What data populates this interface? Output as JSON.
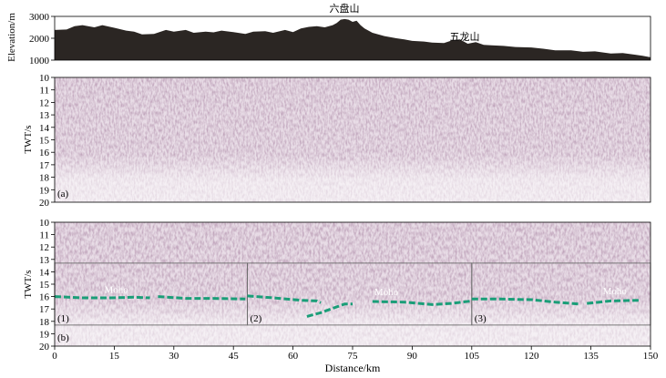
{
  "chart_data": [
    {
      "panel": "elevation",
      "type": "area",
      "ylabel": "Elevation/m",
      "yticks": [
        "3000",
        "2000",
        "1000"
      ],
      "ylim": [
        1000,
        3000
      ],
      "xlim": [
        0,
        150
      ],
      "fill_color": "#2b2623",
      "annotations": [
        {
          "label": "六盘山",
          "x": 73,
          "y": 3000
        },
        {
          "label": "五龙山",
          "x": 103,
          "y": 2150
        }
      ],
      "x": [
        0,
        3,
        5,
        7,
        10,
        12,
        15,
        18,
        20,
        22,
        25,
        28,
        30,
        33,
        35,
        38,
        40,
        42,
        45,
        48,
        50,
        53,
        55,
        58,
        60,
        62,
        64,
        66,
        68,
        70,
        71,
        72,
        73,
        74,
        75,
        76,
        77,
        78,
        80,
        83,
        86,
        88,
        90,
        93,
        95,
        98,
        100,
        102,
        104,
        106,
        108,
        110,
        113,
        116,
        120,
        123,
        126,
        130,
        133,
        136,
        140,
        143,
        146,
        148,
        150
      ],
      "values": [
        2380,
        2400,
        2550,
        2600,
        2500,
        2600,
        2480,
        2350,
        2300,
        2180,
        2200,
        2380,
        2300,
        2380,
        2250,
        2300,
        2270,
        2350,
        2280,
        2200,
        2300,
        2320,
        2250,
        2380,
        2280,
        2450,
        2520,
        2550,
        2500,
        2600,
        2700,
        2850,
        2880,
        2850,
        2750,
        2800,
        2600,
        2450,
        2250,
        2100,
        2000,
        1950,
        1880,
        1850,
        1800,
        1780,
        1900,
        1950,
        1750,
        1820,
        1700,
        1680,
        1650,
        1600,
        1580,
        1520,
        1450,
        1450,
        1380,
        1400,
        1300,
        1320,
        1250,
        1200,
        1130
      ]
    },
    {
      "panel": "a",
      "type": "heatmap",
      "label": "(a)",
      "ylabel": "TWT/s",
      "yticks": [
        "10",
        "11",
        "12",
        "13",
        "14",
        "15",
        "16",
        "17",
        "18",
        "19",
        "20"
      ],
      "ylim": [
        20,
        10
      ],
      "xlim": [
        0,
        150
      ]
    },
    {
      "panel": "b",
      "type": "heatmap",
      "label": "(b)",
      "ylabel": "TWT/s",
      "yticks": [
        "10",
        "11",
        "12",
        "13",
        "14",
        "15",
        "16",
        "17",
        "18",
        "19",
        "20"
      ],
      "ylim": [
        20,
        10
      ],
      "xlim": [
        0,
        150
      ],
      "xlabel": "Distance/km",
      "xticks": [
        "0",
        "15",
        "30",
        "45",
        "60",
        "75",
        "90",
        "105",
        "120",
        "135",
        "150"
      ],
      "boxes": [
        {
          "label": "(1)",
          "x0": 0,
          "x1": 48.5,
          "t0": 13.3,
          "t1": 18.3
        },
        {
          "label": "(2)",
          "x0": 48.5,
          "x1": 105,
          "t0": 13.3,
          "t1": 18.3
        },
        {
          "label": "(3)",
          "x0": 105,
          "x1": 150,
          "t0": 13.3,
          "t1": 18.3
        }
      ],
      "moho_labels": [
        {
          "text": "Moho",
          "x": 15.5,
          "t": 15.7
        },
        {
          "text": "Moho",
          "x": 83.5,
          "t": 15.9
        },
        {
          "text": "Moho",
          "x": 141,
          "t": 15.8
        }
      ],
      "moho_color": "#1a9e78",
      "moho_segments": [
        {
          "x": [
            0,
            7,
            14,
            20,
            24
          ],
          "t": [
            16.0,
            16.1,
            16.1,
            16.05,
            16.1
          ]
        },
        {
          "x": [
            26,
            33,
            40,
            48
          ],
          "t": [
            16.0,
            16.15,
            16.15,
            16.2
          ]
        },
        {
          "x": [
            48.5,
            55,
            62,
            66,
            67
          ],
          "t": [
            15.95,
            16.1,
            16.3,
            16.35,
            16.5
          ]
        },
        {
          "x": [
            63.5,
            67,
            70,
            73,
            75
          ],
          "t": [
            17.6,
            17.3,
            16.95,
            16.6,
            16.6
          ]
        },
        {
          "x": [
            80,
            88,
            95,
            100,
            105
          ],
          "t": [
            16.4,
            16.45,
            16.65,
            16.55,
            16.35
          ]
        },
        {
          "x": [
            105,
            112,
            120,
            126,
            132
          ],
          "t": [
            16.2,
            16.2,
            16.25,
            16.45,
            16.6
          ]
        },
        {
          "x": [
            134,
            140,
            147
          ],
          "t": [
            16.55,
            16.35,
            16.3
          ]
        }
      ]
    }
  ]
}
